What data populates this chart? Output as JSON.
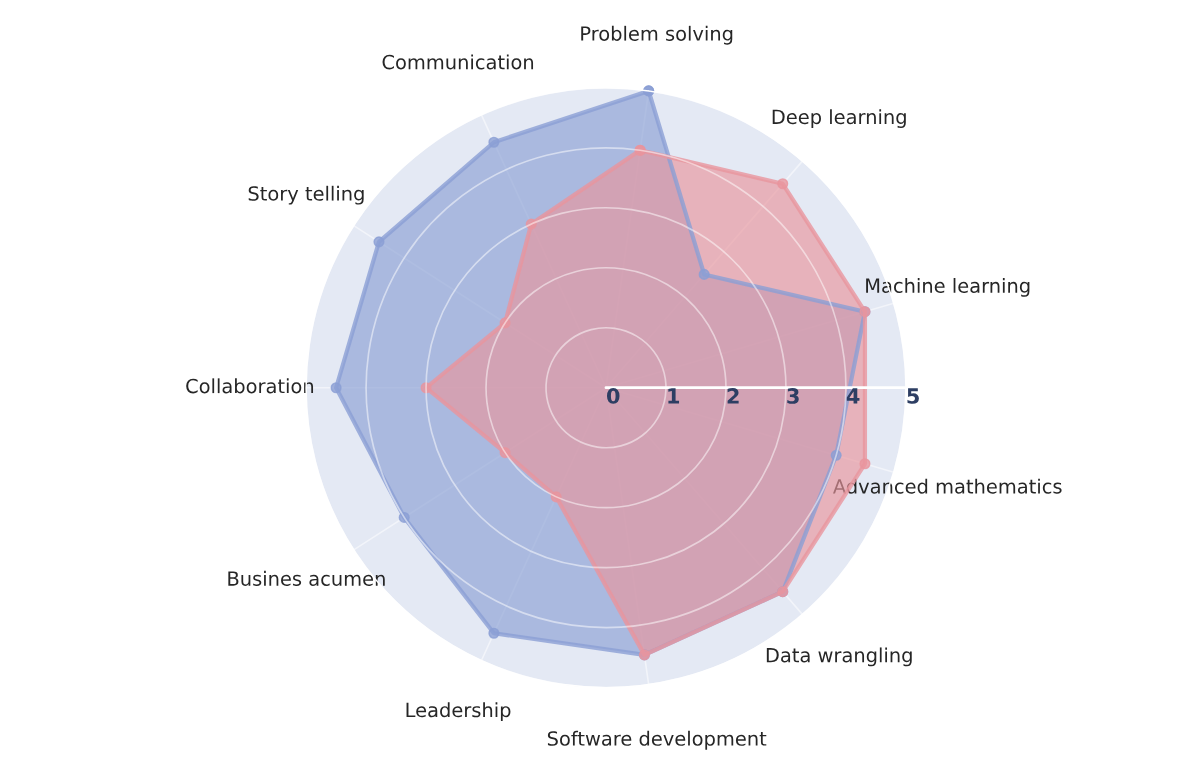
{
  "chart_data": {
    "type": "radar",
    "categories": [
      "Problem solving",
      "Deep learning",
      "Machine learning",
      "Advanced mathematics",
      "Data wrangling",
      "Software development",
      "Leadership",
      "Busines acumen",
      "Collaboration",
      "Story telling",
      "Communication"
    ],
    "series": [
      {
        "color": "#8b9fd4",
        "values": [
          5.0,
          2.5,
          4.5,
          4.0,
          4.5,
          4.5,
          4.5,
          4.0,
          4.5,
          4.5,
          4.5
        ]
      },
      {
        "color": "#e8959d",
        "values": [
          4.0,
          4.5,
          4.5,
          4.5,
          4.5,
          4.5,
          2.0,
          2.0,
          3.0,
          2.0,
          3.0
        ]
      }
    ],
    "ylim": [
      0,
      5
    ],
    "yticks": [
      0,
      1,
      2,
      3,
      4,
      5
    ],
    "grid": true,
    "marker": "circle",
    "legend": false
  }
}
